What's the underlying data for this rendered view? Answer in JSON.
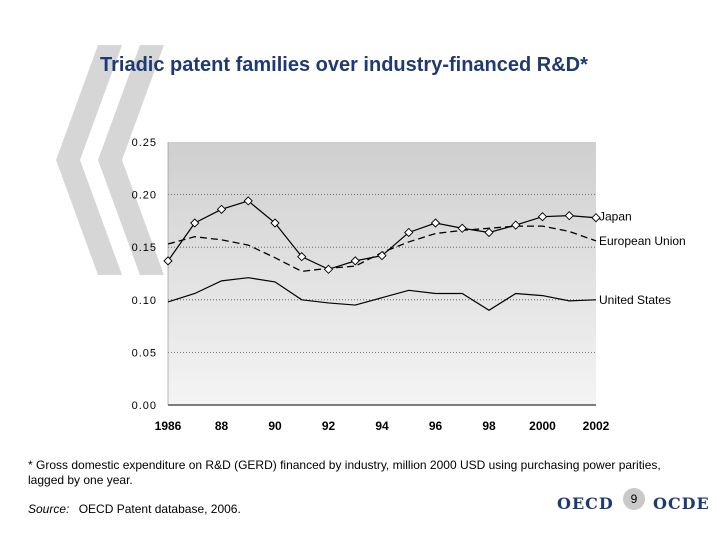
{
  "title": "Triadic patent families over industry-financed R&D*",
  "footnote": "* Gross domestic expenditure on R&D (GERD) financed by industry, million 2000 USD using purchasing power parities, lagged by one year.",
  "source": {
    "label": "Source:",
    "text": "OECD Patent database, 2006."
  },
  "logo": {
    "left": "OECD",
    "right": "OCDE"
  },
  "page_number": "9",
  "colors": {
    "title": "#1f3a73",
    "plot_top": "#cfcfcf",
    "plot_bottom": "#f4f4f4",
    "decor": "#d6d6d6"
  },
  "chart_data": {
    "type": "line",
    "title": "Triadic patent families over industry-financed R&D*",
    "xlabel": "",
    "ylabel": "",
    "x": [
      1986,
      1987,
      1988,
      1989,
      1990,
      1991,
      1992,
      1993,
      1994,
      1995,
      1996,
      1997,
      1998,
      1999,
      2000,
      2001,
      2002
    ],
    "xlim": [
      1986,
      2002
    ],
    "ylim": [
      0,
      0.25
    ],
    "grid": "horizontal dotted",
    "y_ticks": [
      "0.25",
      "0.20",
      "0.15",
      "0.10",
      "0.05",
      "0.00"
    ],
    "y_tick_values": [
      0.25,
      0.2,
      0.15,
      0.1,
      0.05,
      0.0
    ],
    "x_ticks": [
      "1986",
      "88",
      "90",
      "92",
      "94",
      "96",
      "98",
      "2000",
      "2002"
    ],
    "x_tick_values": [
      1986,
      1988,
      1990,
      1992,
      1994,
      1996,
      1998,
      2000,
      2002
    ],
    "series": [
      {
        "name": "Japan",
        "style": "solid-markers",
        "values": [
          0.137,
          0.173,
          0.186,
          0.194,
          0.173,
          0.141,
          0.129,
          0.137,
          0.142,
          0.164,
          0.173,
          0.168,
          0.164,
          0.171,
          0.179,
          0.18,
          0.178
        ]
      },
      {
        "name": "European Union",
        "style": "dashed",
        "values": [
          0.153,
          0.16,
          0.157,
          0.152,
          0.14,
          0.127,
          0.13,
          0.132,
          0.145,
          0.155,
          0.163,
          0.166,
          0.168,
          0.17,
          0.17,
          0.165,
          0.156
        ]
      },
      {
        "name": "United States",
        "style": "solid",
        "values": [
          0.098,
          0.106,
          0.118,
          0.121,
          0.117,
          0.1,
          0.097,
          0.095,
          0.102,
          0.109,
          0.106,
          0.106,
          0.09,
          0.106,
          0.104,
          0.099,
          0.1
        ]
      }
    ]
  }
}
